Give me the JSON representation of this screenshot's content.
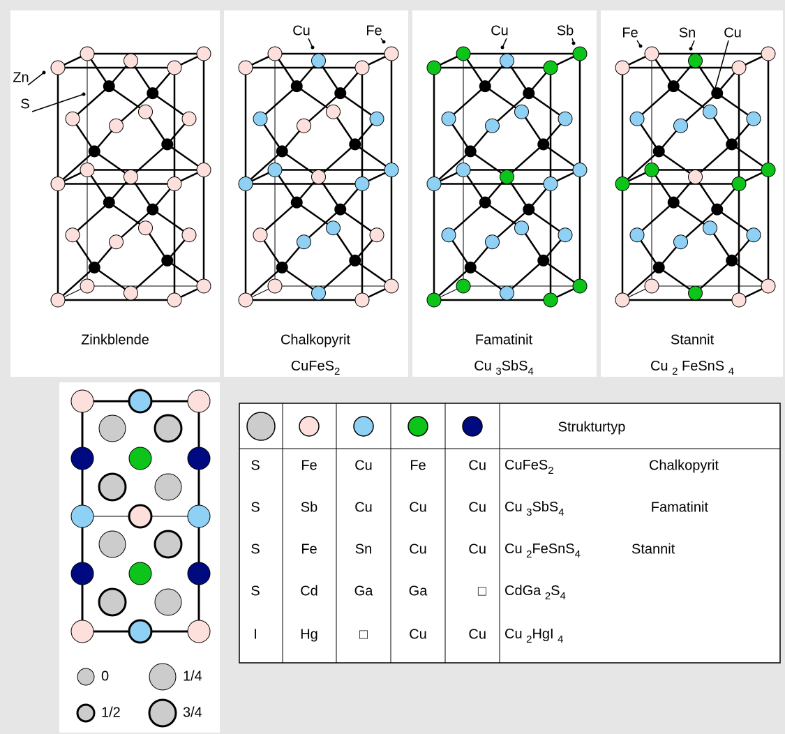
{
  "panels": [
    {
      "name": "Zinkblende",
      "labels": [
        "Zn",
        "S"
      ]
    },
    {
      "name": "Chalkopyrit",
      "formula": [
        "CuFeS",
        "2"
      ],
      "labels": [
        "Cu",
        "Fe"
      ]
    },
    {
      "name": "Famatinit",
      "formula": [
        "Cu ",
        "3",
        "SbS",
        "4"
      ],
      "labels": [
        "Cu",
        "Sb"
      ]
    },
    {
      "name": "Stannit",
      "formula": [
        "Cu ",
        "2",
        " FeSnS ",
        "4"
      ],
      "labels": [
        "Fe",
        "Sn",
        "Cu"
      ]
    }
  ],
  "legend": [
    "0",
    "1/4",
    "1/2",
    "3/4"
  ],
  "table": {
    "header": "Strukturtyp",
    "rows": [
      [
        "S",
        "Fe",
        "Cu",
        "Fe",
        "Cu",
        [
          "CuFeS",
          "2"
        ],
        "Chalkopyrit"
      ],
      [
        "S",
        "Sb",
        "Cu",
        "Cu",
        "Cu",
        [
          "Cu ",
          "3",
          "SbS",
          "4"
        ],
        "Famatinit"
      ],
      [
        "S",
        "Fe",
        "Sn",
        "Cu",
        "Cu",
        [
          "Cu ",
          "2",
          "FeSnS",
          "4"
        ],
        "Stannit"
      ],
      [
        "S",
        "Cd",
        "Ga",
        "Ga",
        "□",
        [
          "CdGa ",
          "2",
          "S",
          "4"
        ]
      ],
      [
        "I",
        "Hg",
        "□",
        "Cu",
        "Cu",
        [
          "Cu ",
          "2",
          "HgI ",
          "4"
        ]
      ]
    ]
  }
}
